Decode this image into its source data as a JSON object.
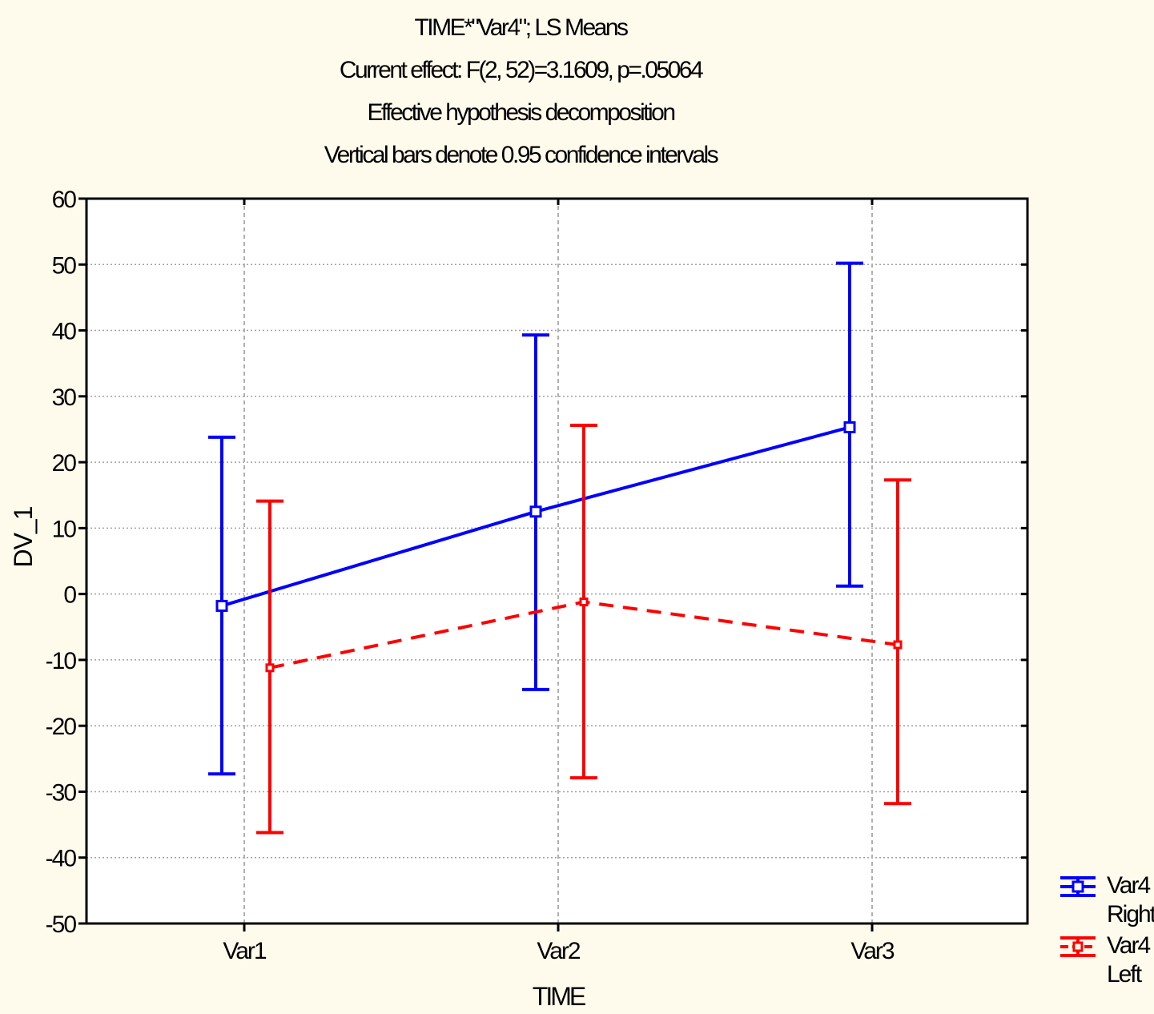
{
  "titles": {
    "line1": "TIME*\"Var4\"; LS Means",
    "line2": "Current effect: F(2, 52)=3.1609, p=.05064",
    "line3": "Effective hypothesis decomposition",
    "line4": "Vertical bars denote 0.95 confidence intervals"
  },
  "chart_data": {
    "type": "line",
    "title": "TIME*\"Var4\"; LS Means",
    "xlabel": "TIME",
    "ylabel": "DV_1",
    "categories": [
      "Var1",
      "Var2",
      "Var3"
    ],
    "ylim": [
      -50,
      60
    ],
    "yticks": [
      60,
      50,
      40,
      30,
      20,
      10,
      0,
      -10,
      -20,
      -30,
      -40,
      -50
    ],
    "grid": true,
    "legend_position": "bottom-right, outside plot",
    "series": [
      {
        "name": "Var4\nRight",
        "color": "#0000ff",
        "line_style": "solid",
        "marker": "square",
        "values": [
          -1.8,
          12.5,
          25.3
        ],
        "ci_upper": [
          23.8,
          39.3,
          50.2
        ],
        "ci_lower": [
          -27.3,
          -14.5,
          1.2
        ]
      },
      {
        "name": "Var4\nLeft",
        "color": "#ff0000",
        "line_style": "dashed",
        "marker": "square",
        "values": [
          -11.2,
          -1.2,
          -7.7
        ],
        "ci_upper": [
          14.1,
          25.6,
          17.3
        ],
        "ci_lower": [
          -36.2,
          -27.9,
          -31.8
        ]
      }
    ]
  }
}
